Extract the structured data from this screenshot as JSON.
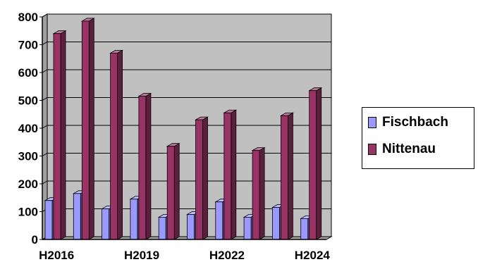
{
  "chart_data": {
    "type": "bar",
    "categories": [
      "H2016",
      "",
      "",
      "H2019",
      "",
      "",
      "H2022",
      "",
      "",
      "H2024"
    ],
    "x_tick_labels": [
      "H2016",
      "H2019",
      "H2022",
      "H2024"
    ],
    "series": [
      {
        "name": "Fischbach",
        "color": "#9999ff",
        "values": [
          140,
          165,
          110,
          145,
          80,
          90,
          135,
          80,
          115,
          75
        ]
      },
      {
        "name": "Nittenau",
        "color": "#993366",
        "values": [
          740,
          785,
          670,
          515,
          335,
          430,
          455,
          320,
          445,
          535
        ]
      }
    ],
    "ylim": [
      0,
      800
    ],
    "y_ticks": [
      0,
      100,
      200,
      300,
      400,
      500,
      600,
      700,
      800
    ],
    "grid": true,
    "legend": "right",
    "plot_background": "#c0c0c0",
    "style": "3d-clustered-bar"
  }
}
